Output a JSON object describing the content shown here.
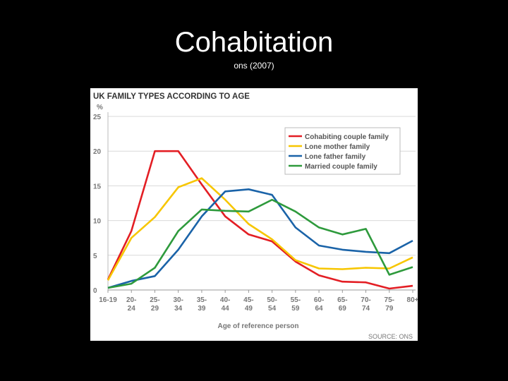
{
  "slide": {
    "title": "Cohabitation",
    "subtitle": "ons (2007)"
  },
  "chart_data": {
    "type": "line",
    "title": "UK FAMILY TYPES ACCORDING TO AGE",
    "ylabel": "%",
    "xlabel": "Age of reference person",
    "source": "SOURCE: ONS",
    "ylim": [
      0,
      25
    ],
    "yticks": [
      0,
      5,
      10,
      15,
      20,
      25
    ],
    "grid": true,
    "legend_position": "top-right",
    "categories": [
      [
        "16-19"
      ],
      [
        "20-",
        "24"
      ],
      [
        "25-",
        "29"
      ],
      [
        "30-",
        "34"
      ],
      [
        "35-",
        "39"
      ],
      [
        "40-",
        "44"
      ],
      [
        "45-",
        "49"
      ],
      [
        "50-",
        "54"
      ],
      [
        "55-",
        "59"
      ],
      [
        "60-",
        "64"
      ],
      [
        "65-",
        "69"
      ],
      [
        "70-",
        "74"
      ],
      [
        "75-",
        "79"
      ],
      [
        "80+"
      ]
    ],
    "series": [
      {
        "name": "Cohabiting couple family",
        "color": "#e31e24",
        "points": [
          [
            0,
            1.5
          ],
          [
            1,
            8.5
          ],
          [
            2,
            20
          ],
          [
            3,
            20
          ],
          [
            4,
            15.2
          ],
          [
            5,
            10.6
          ],
          [
            6,
            8
          ],
          [
            7,
            7
          ],
          [
            8,
            4.1
          ],
          [
            9,
            2.1
          ],
          [
            10,
            1.2
          ],
          [
            11,
            1.1
          ],
          [
            12,
            0.2
          ],
          [
            13,
            0.6
          ]
        ]
      },
      {
        "name": "Lone mother family",
        "color": "#f7c600",
        "points": [
          [
            0,
            1.4
          ],
          [
            1,
            7.5
          ],
          [
            2,
            10.5
          ],
          [
            3,
            14.8
          ],
          [
            4,
            16.1
          ],
          [
            5,
            13
          ],
          [
            6,
            9.5
          ],
          [
            7,
            7.3
          ],
          [
            8,
            4.3
          ],
          [
            9,
            3.1
          ],
          [
            10,
            3
          ],
          [
            11,
            3.2
          ],
          [
            12,
            3.1
          ],
          [
            13,
            4.7
          ]
        ]
      },
      {
        "name": "Lone father family",
        "color": "#1a63a8",
        "points": [
          [
            0,
            0.3
          ],
          [
            1,
            1.3
          ],
          [
            2,
            2
          ],
          [
            3,
            5.8
          ],
          [
            4,
            10.6
          ],
          [
            5,
            14.2
          ],
          [
            6,
            14.5
          ],
          [
            7,
            13.7
          ],
          [
            8,
            9
          ],
          [
            9,
            6.4
          ],
          [
            10,
            5.8
          ],
          [
            11,
            5.5
          ],
          [
            12,
            5.3
          ],
          [
            13,
            7.1
          ]
        ]
      },
      {
        "name": "Married couple family",
        "color": "#2e9a3c",
        "points": [
          [
            0,
            0.3
          ],
          [
            1,
            0.9
          ],
          [
            2,
            3.2
          ],
          [
            3,
            8.5
          ],
          [
            4,
            11.6
          ],
          [
            5,
            11.4
          ],
          [
            6,
            11.3
          ],
          [
            7,
            13
          ],
          [
            8,
            11.3
          ],
          [
            9,
            9
          ],
          [
            10,
            8
          ],
          [
            11,
            8.8
          ],
          [
            12,
            2.2
          ],
          [
            13,
            3.3
          ]
        ]
      }
    ]
  }
}
